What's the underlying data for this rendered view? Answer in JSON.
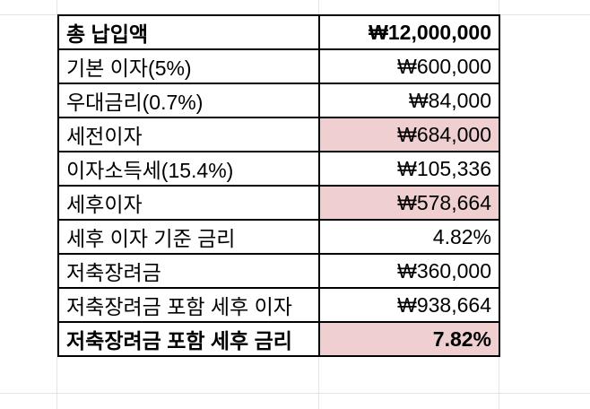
{
  "colors": {
    "highlight": "#efcfcf",
    "gridline": "#e2e3e3",
    "border": "#000000"
  },
  "rows": [
    {
      "label": "총 납입액",
      "value": "₩12,000,000",
      "bold": true,
      "highlight": false
    },
    {
      "label": "기본 이자(5%)",
      "value": "₩600,000",
      "bold": false,
      "highlight": false
    },
    {
      "label": "우대금리(0.7%)",
      "value": "₩84,000",
      "bold": false,
      "highlight": false
    },
    {
      "label": "세전이자",
      "value": "₩684,000",
      "bold": false,
      "highlight": true
    },
    {
      "label": "이자소득세(15.4%)",
      "value": "₩105,336",
      "bold": false,
      "highlight": false
    },
    {
      "label": "세후이자",
      "value": "₩578,664",
      "bold": false,
      "highlight": true
    },
    {
      "label": "세후 이자 기준 금리",
      "value": "4.82%",
      "bold": false,
      "highlight": false
    },
    {
      "label": "저축장려금",
      "value": "₩360,000",
      "bold": false,
      "highlight": false
    },
    {
      "label": "저축장려금 포함 세후 이자",
      "value": "₩938,664",
      "bold": false,
      "highlight": false
    },
    {
      "label": "저축장려금 포함 세후 금리",
      "value": "7.82%",
      "bold": true,
      "highlight": true
    }
  ]
}
